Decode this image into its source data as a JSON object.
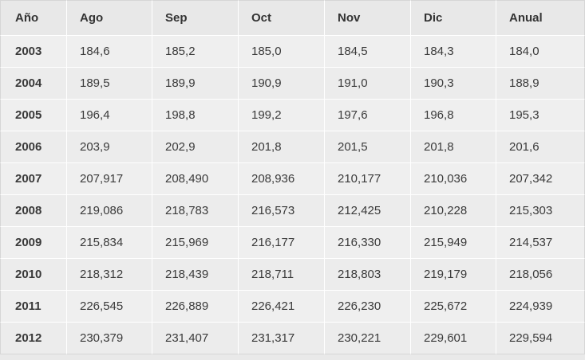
{
  "table": {
    "headers": [
      "Año",
      "Ago",
      "Sep",
      "Oct",
      "Nov",
      "Dic",
      "Anual"
    ],
    "rows": [
      [
        "2003",
        "184,6",
        "185,2",
        "185,0",
        "184,5",
        "184,3",
        "184,0"
      ],
      [
        "2004",
        "189,5",
        "189,9",
        "190,9",
        "191,0",
        "190,3",
        "188,9"
      ],
      [
        "2005",
        "196,4",
        "198,8",
        "199,2",
        "197,6",
        "196,8",
        "195,3"
      ],
      [
        "2006",
        "203,9",
        "202,9",
        "201,8",
        "201,5",
        "201,8",
        "201,6"
      ],
      [
        "2007",
        "207,917",
        "208,490",
        "208,936",
        "210,177",
        "210,036",
        "207,342"
      ],
      [
        "2008",
        "219,086",
        "218,783",
        "216,573",
        "212,425",
        "210,228",
        "215,303"
      ],
      [
        "2009",
        "215,834",
        "215,969",
        "216,177",
        "216,330",
        "215,949",
        "214,537"
      ],
      [
        "2010",
        "218,312",
        "218,439",
        "218,711",
        "218,803",
        "219,179",
        "218,056"
      ],
      [
        "2011",
        "226,545",
        "226,889",
        "226,421",
        "226,230",
        "225,672",
        "224,939"
      ],
      [
        "2012",
        "230,379",
        "231,407",
        "231,317",
        "230,221",
        "229,601",
        "229,594"
      ]
    ]
  }
}
